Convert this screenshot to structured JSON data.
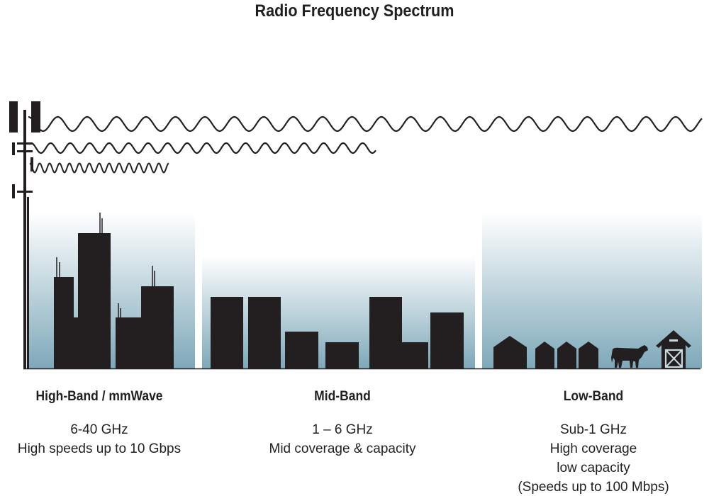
{
  "title": "Radio Frequency Spectrum",
  "colors": {
    "ink": "#231f20",
    "sky_top": "#ffffff",
    "sky_bottom": "#7ea8b9"
  },
  "bands": [
    {
      "name": "High-Band / mmWave",
      "lines": [
        "6-40 GHz",
        "High speeds up to 10 Gbps"
      ]
    },
    {
      "name": "Mid-Band",
      "lines": [
        "1 – 6 GHz",
        "Mid coverage & capacity"
      ]
    },
    {
      "name": "Low-Band",
      "lines": [
        "Sub-1 GHz",
        "High coverage",
        "low capacity",
        "(Speeds up to 100 Mbps)"
      ]
    }
  ],
  "icons": [
    "cell-tower-icon",
    "city-buildings-icon",
    "suburban-buildings-icon",
    "house-icon",
    "cow-icon",
    "barn-icon"
  ]
}
